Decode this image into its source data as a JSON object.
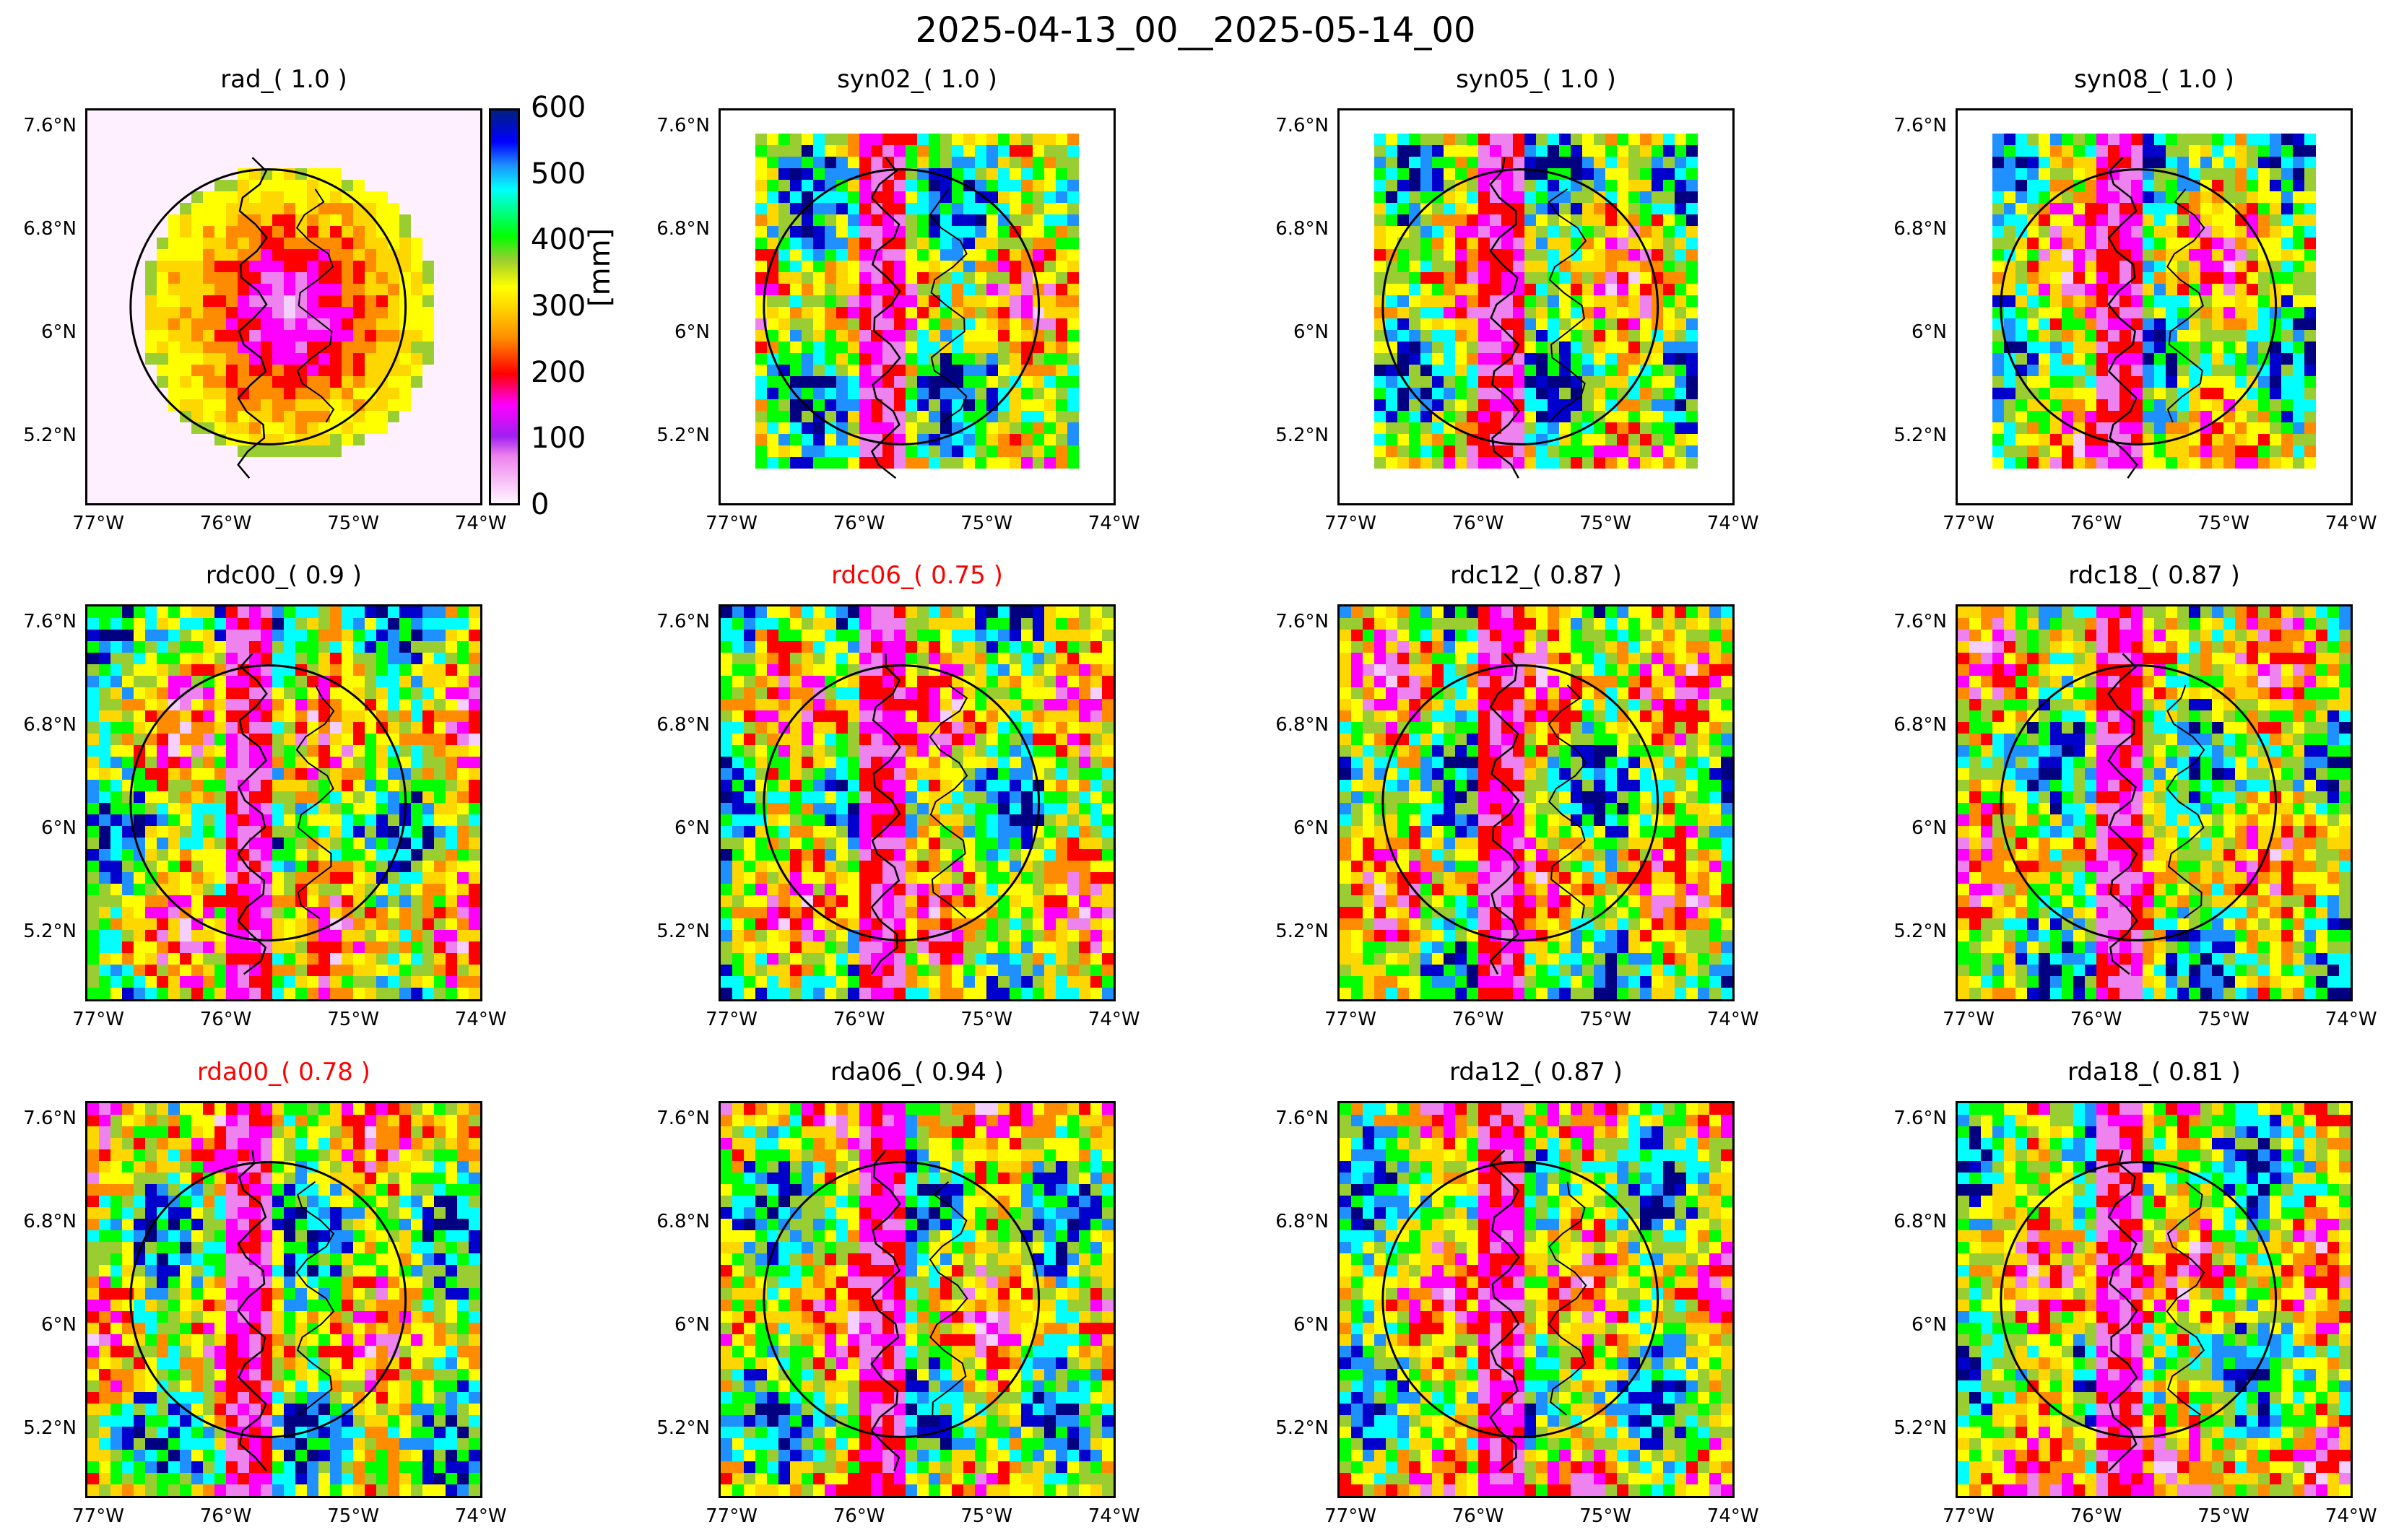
{
  "suptitle": "2025-04-13_00__2025-05-14_00",
  "colorbar": {
    "ticks": [
      "600",
      "500",
      "400",
      "300",
      "200",
      "100",
      "0"
    ],
    "unit": "[mm]"
  },
  "axis": {
    "lat_ticks": [
      "7.6°N",
      "6.8°N",
      "6°N",
      "5.2°N"
    ],
    "lon_ticks": [
      "77°W",
      "76°W",
      "75°W",
      "74°W"
    ]
  },
  "panels": [
    {
      "title": "rad_( 1.0 )",
      "highlight": false
    },
    {
      "title": "syn02_( 1.0 )",
      "highlight": false
    },
    {
      "title": "syn05_( 1.0 )",
      "highlight": false
    },
    {
      "title": "syn08_( 1.0 )",
      "highlight": false
    },
    {
      "title": "rdc00_( 0.9 )",
      "highlight": false
    },
    {
      "title": "rdc06_( 0.75 )",
      "highlight": true
    },
    {
      "title": "rdc12_( 0.87 )",
      "highlight": false
    },
    {
      "title": "rdc18_( 0.87 )",
      "highlight": false
    },
    {
      "title": "rda00_( 0.78 )",
      "highlight": true
    },
    {
      "title": "rda06_( 0.94 )",
      "highlight": false
    },
    {
      "title": "rda12_( 0.87 )",
      "highlight": false
    },
    {
      "title": "rda18_( 0.81 )",
      "highlight": false
    }
  ],
  "colors": {
    "highlight_title": "#ff0000",
    "normal_title": "#000000"
  }
}
